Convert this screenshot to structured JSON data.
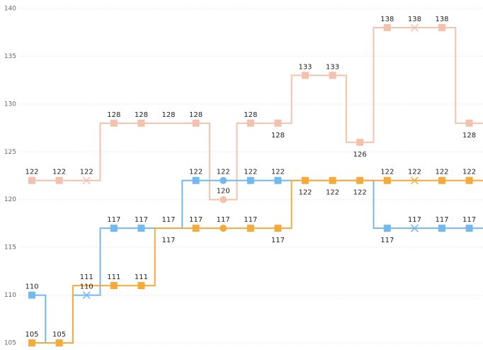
{
  "chart_data": {
    "type": "line",
    "step": true,
    "grid": true,
    "ylim": [
      105,
      140
    ],
    "yticks": [
      "105",
      "110",
      "115",
      "120",
      "125",
      "130",
      "135",
      "140"
    ],
    "x": [
      1,
      2,
      3,
      4,
      5,
      6,
      7,
      8,
      9,
      10,
      11,
      12,
      13,
      14,
      15,
      16,
      17
    ],
    "series": [
      {
        "color": "#f4c2ac",
        "values": [
          122,
          122,
          122,
          128,
          128,
          128,
          128,
          120,
          128,
          128,
          133,
          133,
          126,
          138,
          138,
          138,
          128
        ],
        "labels": [
          "122",
          "122",
          "122",
          "128",
          "128",
          "128",
          "128",
          "120",
          "128",
          "128",
          "133",
          "133",
          "126",
          "138",
          "138",
          "138",
          "128"
        ],
        "label_pos": [
          "above",
          "above",
          "above",
          "above",
          "above",
          "above",
          "above",
          "above",
          "above",
          "below",
          "above",
          "above",
          "below",
          "above",
          "above",
          "above",
          "below"
        ],
        "markers": [
          "square",
          "square",
          "x",
          "square",
          "square",
          "none",
          "square",
          "circle",
          "square",
          "square",
          "square",
          "square",
          "square",
          "square",
          "x",
          "square",
          "square"
        ]
      },
      {
        "color": "#73b9f0",
        "values": [
          110,
          105,
          110,
          117,
          117,
          117,
          122,
          122,
          122,
          122,
          122,
          122,
          122,
          117,
          117,
          117,
          117
        ],
        "labels": [
          "110",
          "",
          "110",
          "117",
          "117",
          "117",
          "122",
          "122",
          "122",
          "122",
          "",
          "",
          "",
          "117",
          "117",
          "117",
          "117"
        ],
        "label_pos": [
          "above",
          "above",
          "above",
          "above",
          "above",
          "above",
          "above",
          "above",
          "above",
          "above",
          "above",
          "above",
          "above",
          "below",
          "above",
          "above",
          "above"
        ],
        "markers": [
          "square",
          "none",
          "x",
          "square",
          "square",
          "none",
          "square",
          "circle",
          "square",
          "square",
          "none",
          "none",
          "none",
          "square",
          "x",
          "square",
          "square"
        ]
      },
      {
        "color": "#f6aa3a",
        "values": [
          105,
          105,
          111,
          111,
          111,
          117,
          117,
          117,
          117,
          117,
          122,
          122,
          122,
          122,
          122,
          122,
          122
        ],
        "labels": [
          "105",
          "105",
          "111",
          "111",
          "111",
          "117",
          "117",
          "117",
          "117",
          "117",
          "122",
          "122",
          "122",
          "122",
          "122",
          "122",
          "122"
        ],
        "label_pos": [
          "above",
          "above",
          "above",
          "above",
          "above",
          "below",
          "above",
          "above",
          "above",
          "below",
          "below",
          "below",
          "below",
          "above",
          "above",
          "above",
          "above"
        ],
        "markers": [
          "square",
          "square",
          "none",
          "square",
          "square",
          "none",
          "square",
          "circle",
          "square",
          "square",
          "square",
          "square",
          "square",
          "square",
          "x",
          "square",
          "square"
        ]
      }
    ]
  }
}
